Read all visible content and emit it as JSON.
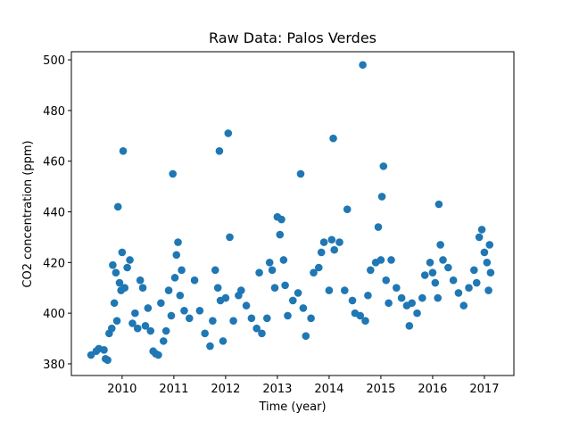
{
  "chart_data": {
    "type": "scatter",
    "title": "Raw Data: Palos Verdes",
    "x_label": "Time (year)",
    "y_label": "CO2 concentration (ppm)",
    "xlim": [
      2009.02,
      2017.57
    ],
    "ylim": [
      375.4,
      503.2
    ],
    "xticks": [
      2010,
      2011,
      2012,
      2013,
      2014,
      2015,
      2016,
      2017
    ],
    "yticks": [
      380,
      400,
      420,
      440,
      460,
      480,
      500
    ],
    "grid": false,
    "series": [
      {
        "color": "#1f77b4",
        "x": [
          2009.4,
          2009.5,
          2009.55,
          2009.65,
          2009.68,
          2009.72,
          2009.75,
          2009.8,
          2009.82,
          2009.85,
          2009.88,
          2009.9,
          2009.92,
          2009.95,
          2009.98,
          2010.0,
          2010.02,
          2010.05,
          2010.1,
          2010.15,
          2010.2,
          2010.25,
          2010.3,
          2010.35,
          2010.4,
          2010.45,
          2010.5,
          2010.55,
          2010.6,
          2010.65,
          2010.7,
          2010.75,
          2010.8,
          2010.85,
          2010.9,
          2010.95,
          2010.98,
          2011.02,
          2011.05,
          2011.08,
          2011.12,
          2011.15,
          2011.2,
          2011.3,
          2011.4,
          2011.5,
          2011.6,
          2011.7,
          2011.75,
          2011.8,
          2011.85,
          2011.88,
          2011.9,
          2011.95,
          2012.0,
          2012.05,
          2012.08,
          2012.15,
          2012.25,
          2012.3,
          2012.4,
          2012.5,
          2012.6,
          2012.65,
          2012.7,
          2012.8,
          2012.85,
          2012.9,
          2012.95,
          2013.0,
          2013.05,
          2013.08,
          2013.12,
          2013.15,
          2013.2,
          2013.3,
          2013.4,
          2013.45,
          2013.5,
          2013.55,
          2013.65,
          2013.7,
          2013.8,
          2013.85,
          2013.9,
          2014.0,
          2014.05,
          2014.08,
          2014.1,
          2014.2,
          2014.3,
          2014.35,
          2014.45,
          2014.5,
          2014.6,
          2014.65,
          2014.7,
          2014.75,
          2014.8,
          2014.9,
          2014.95,
          2015.0,
          2015.02,
          2015.05,
          2015.1,
          2015.15,
          2015.2,
          2015.3,
          2015.4,
          2015.5,
          2015.55,
          2015.6,
          2015.7,
          2015.8,
          2015.85,
          2015.95,
          2016.0,
          2016.05,
          2016.1,
          2016.12,
          2016.15,
          2016.2,
          2016.3,
          2016.4,
          2016.5,
          2016.6,
          2016.7,
          2016.8,
          2016.85,
          2016.9,
          2016.95,
          2017.0,
          2017.05,
          2017.08,
          2017.1,
          2017.12
        ],
        "values": [
          383.5,
          385,
          386,
          385.5,
          382,
          381.5,
          392,
          394,
          419,
          404,
          416,
          397,
          442,
          412,
          409,
          424,
          464,
          410,
          418,
          421,
          396,
          400,
          394,
          413,
          410,
          395,
          402,
          393,
          385,
          384,
          383.5,
          404,
          389,
          393,
          409,
          399,
          455,
          414,
          423,
          428,
          407,
          417,
          401,
          398,
          413,
          401,
          392,
          387,
          397,
          417,
          410,
          464,
          405,
          389,
          406,
          471,
          430,
          397,
          407,
          409,
          403,
          398,
          394,
          416,
          392,
          398,
          420,
          417,
          410,
          438,
          431,
          437,
          421,
          411,
          399,
          405,
          408,
          455,
          402,
          391,
          398,
          416,
          418,
          424,
          428,
          409,
          429,
          469,
          425,
          428,
          409,
          441,
          405,
          400,
          399,
          498,
          397,
          407,
          417,
          420,
          434,
          421,
          446,
          458,
          413,
          404,
          421,
          410,
          406,
          403,
          395,
          404,
          400,
          406,
          415,
          420,
          416,
          412,
          406,
          443,
          427,
          421,
          418,
          413,
          408,
          403,
          410,
          417,
          412,
          430,
          433,
          424,
          420,
          409,
          427,
          416
        ]
      }
    ]
  }
}
